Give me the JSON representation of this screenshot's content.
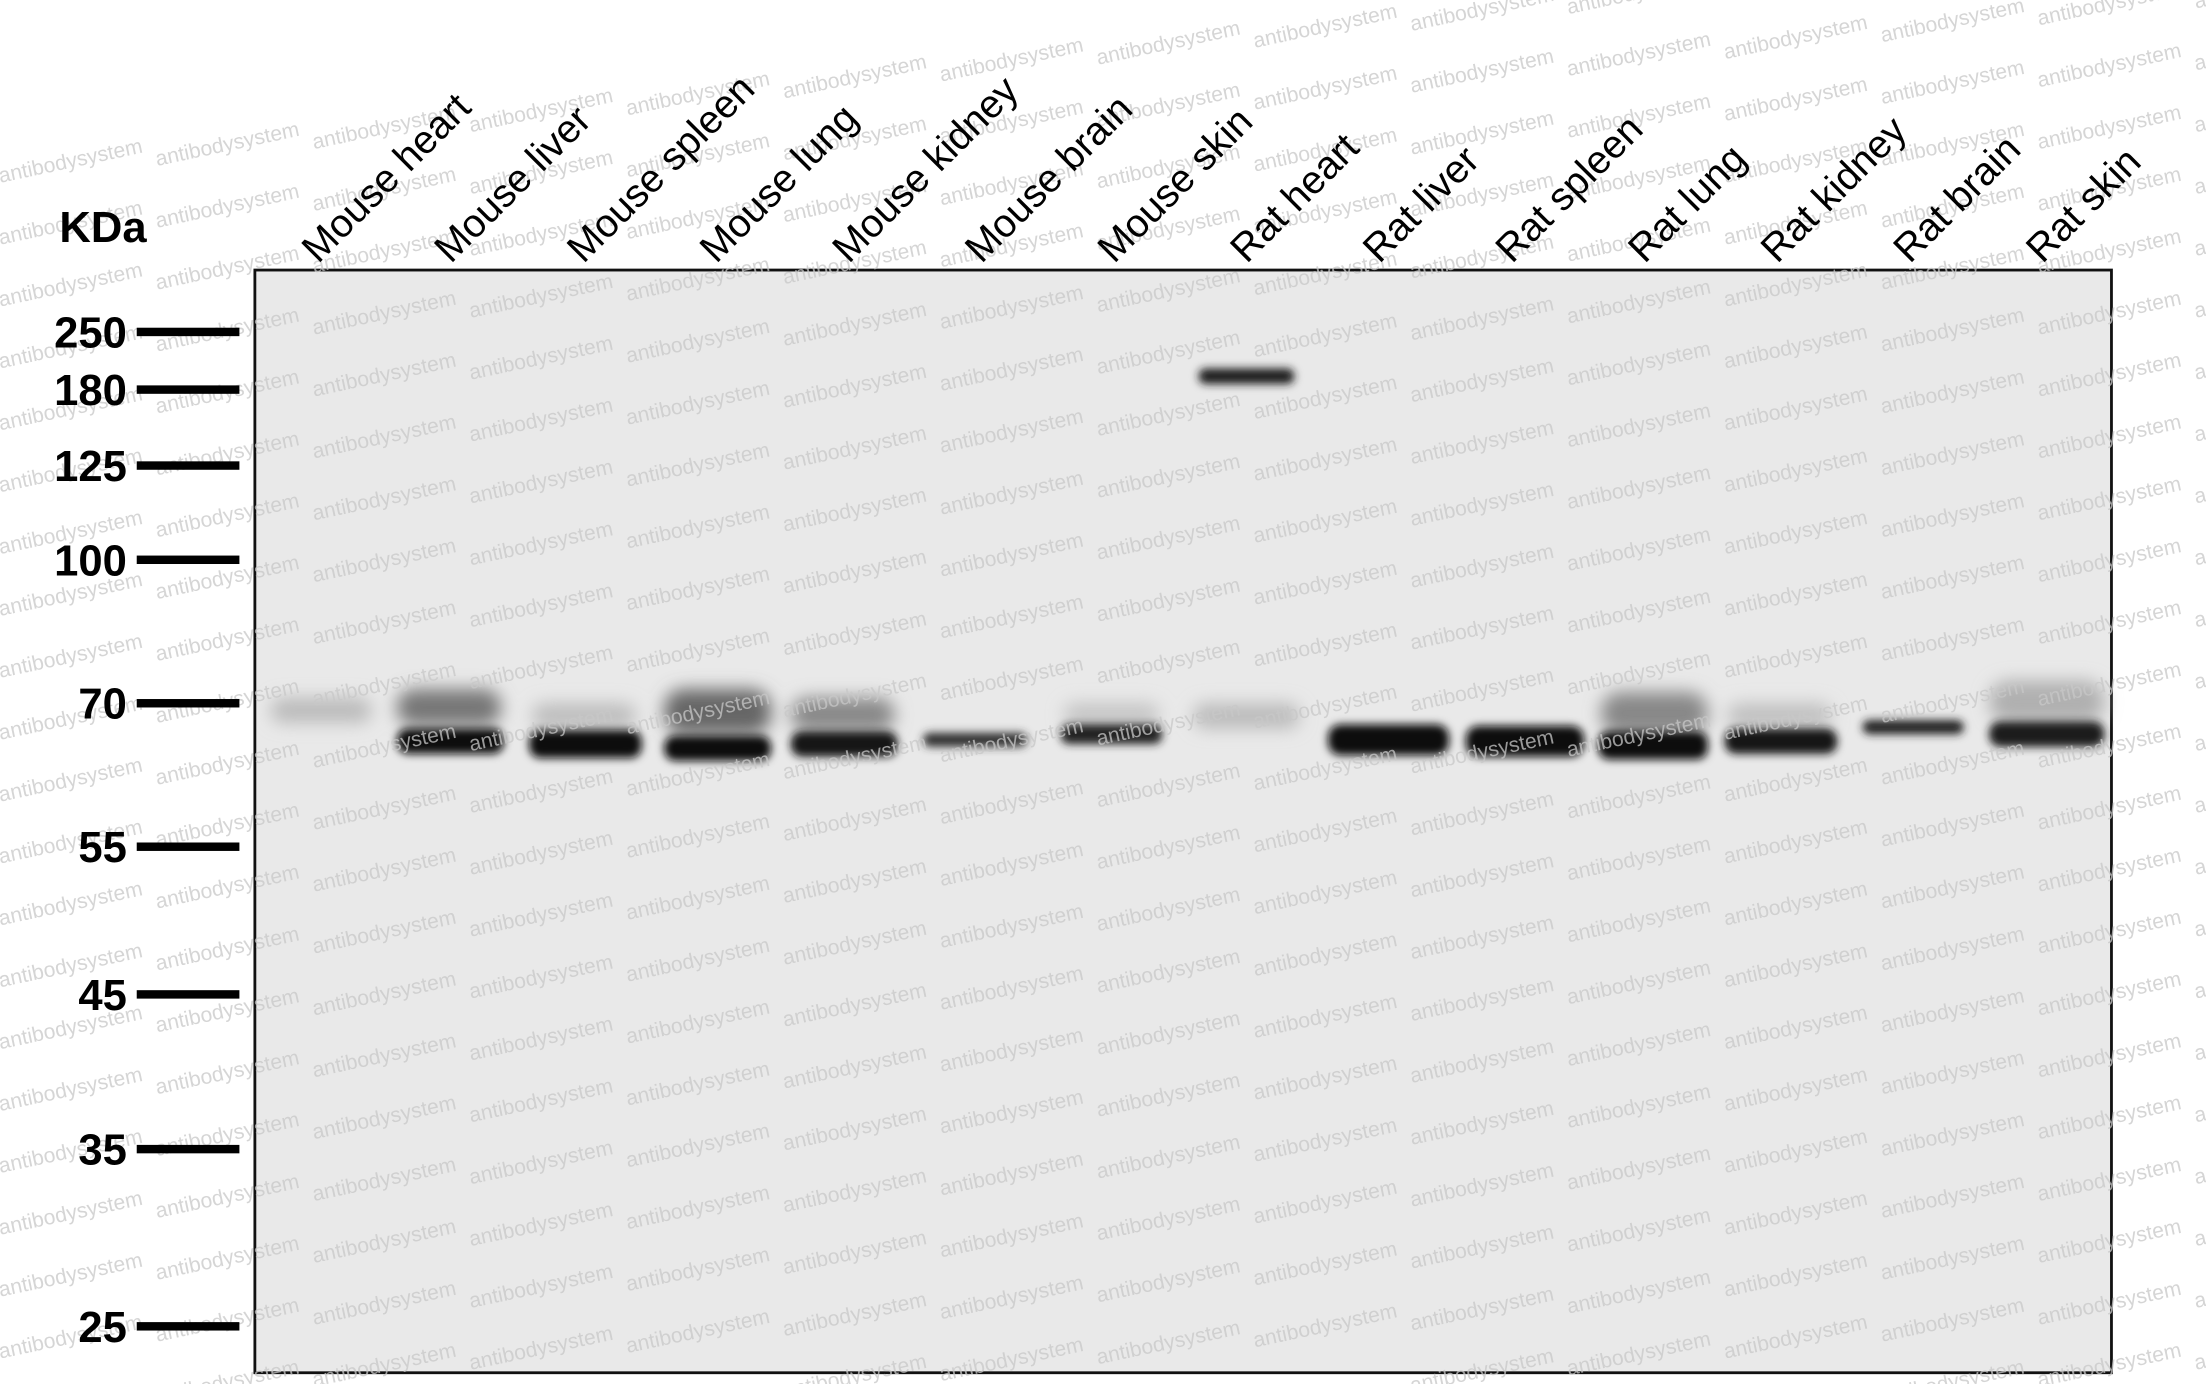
{
  "unit_label": "KDa",
  "watermark": "antibodysystem",
  "lanes": [
    "Mouse heart",
    "Mouse liver",
    "Mouse spleen",
    "Mouse lung",
    "Mouse kidney",
    "Mouse brain",
    "Mouse skin",
    "Rat heart",
    "Rat liver",
    "Rat spleen",
    "Rat lung",
    "Rat kidney",
    "Rat brain",
    "Rat skin"
  ],
  "markers": [
    250,
    180,
    125,
    100,
    70,
    55,
    45,
    35,
    25
  ]
}
